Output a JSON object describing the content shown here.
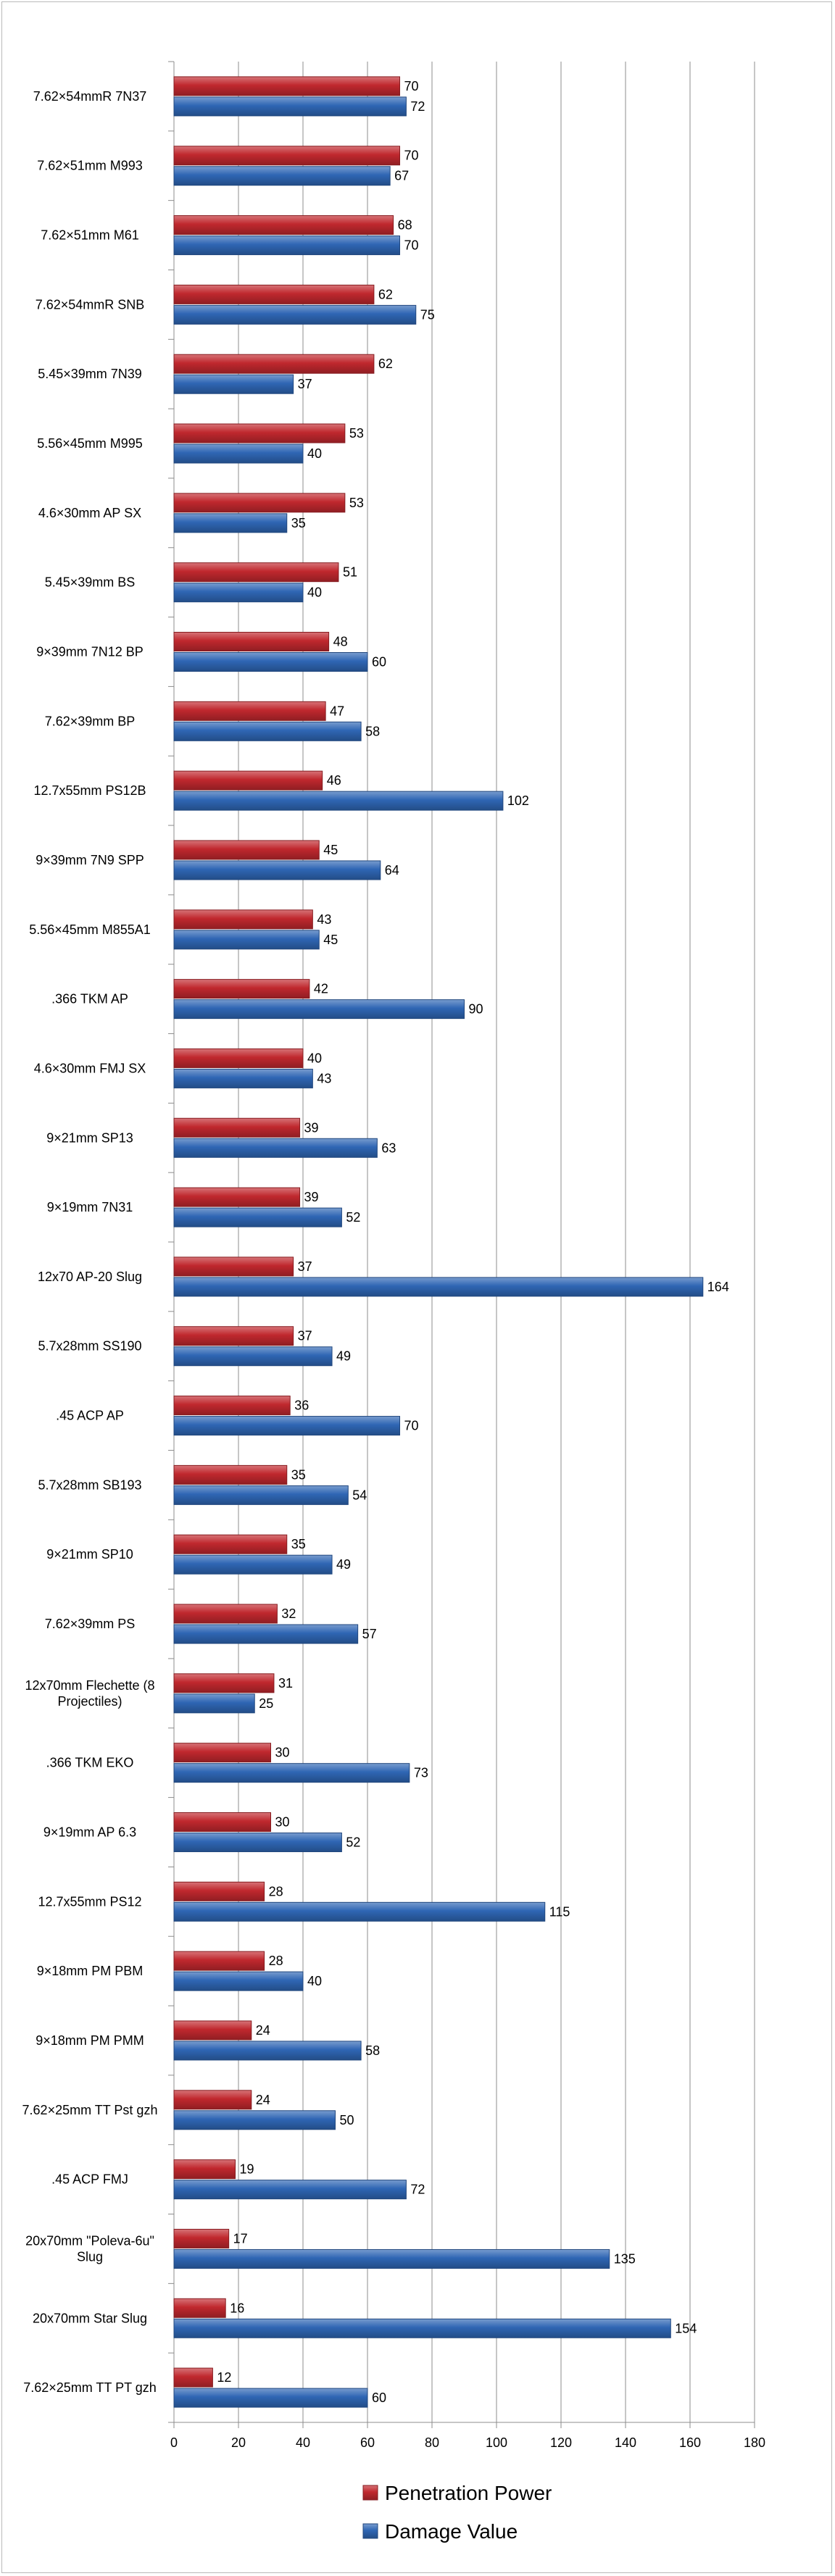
{
  "chart_data": {
    "type": "bar",
    "orientation": "horizontal",
    "categories": [
      "7.62×54mmR 7N37",
      "7.62×51mm M993",
      "7.62×51mm M61",
      "7.62×54mmR SNB",
      "5.45×39mm 7N39",
      "5.56×45mm M995",
      "4.6×30mm AP SX",
      "5.45×39mm BS",
      "9×39mm 7N12 BP",
      "7.62×39mm BP",
      "12.7x55mm PS12B",
      "9×39mm 7N9 SPP",
      "5.56×45mm M855A1",
      ".366 TKM AP",
      "4.6×30mm FMJ SX",
      "9×21mm SP13",
      "9×19mm 7N31",
      "12x70 AP-20 Slug",
      "5.7x28mm SS190",
      ".45 ACP AP",
      "5.7x28mm SB193",
      "9×21mm SP10",
      "7.62×39mm PS",
      "12x70mm Flechette (8 Projectiles)",
      ".366 TKM EKO",
      "9×19mm AP 6.3",
      "12.7x55mm PS12",
      "9×18mm PM PBM",
      "9×18mm PM PMM",
      "7.62×25mm TT Pst gzh",
      ".45 ACP FMJ",
      "20x70mm \"Poleva-6u\" Slug",
      "20x70mm Star Slug",
      "7.62×25mm TT PT gzh"
    ],
    "series": [
      {
        "name": "Penetration Power",
        "color": "#c0282e",
        "values": [
          70,
          70,
          68,
          62,
          62,
          53,
          53,
          51,
          48,
          47,
          46,
          45,
          43,
          42,
          40,
          39,
          39,
          37,
          37,
          36,
          35,
          35,
          32,
          31,
          30,
          30,
          28,
          28,
          24,
          24,
          19,
          17,
          16,
          12
        ]
      },
      {
        "name": "Damage Value",
        "color": "#2f66b4",
        "values": [
          72,
          67,
          70,
          75,
          37,
          40,
          35,
          40,
          60,
          58,
          102,
          64,
          45,
          90,
          43,
          63,
          52,
          164,
          49,
          70,
          54,
          49,
          57,
          25,
          73,
          52,
          115,
          40,
          58,
          50,
          72,
          135,
          154,
          60
        ]
      }
    ],
    "xlim": [
      0,
      180
    ],
    "xticks": [
      "0",
      "20",
      "40",
      "60",
      "80",
      "100",
      "120",
      "140",
      "160",
      "180"
    ],
    "grid": true,
    "legend_position": "bottom",
    "title": "",
    "xlabel": "",
    "ylabel": ""
  }
}
